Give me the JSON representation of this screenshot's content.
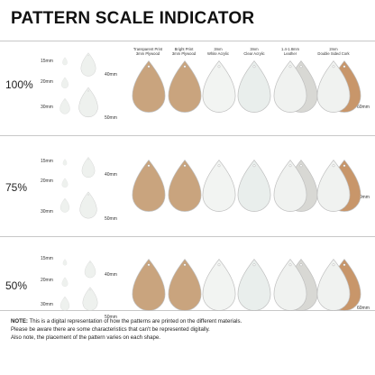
{
  "title": "PATTERN SCALE INDICATOR",
  "columns": [
    {
      "line1": "Transparent Print",
      "line2": "3mm Plywood"
    },
    {
      "line1": "Bright Print",
      "line2": "3mm Plywood"
    },
    {
      "line1": "3mm",
      "line2": "White Acrylic"
    },
    {
      "line1": "3mm",
      "line2": "Clear Acrylic"
    },
    {
      "line1": "1.4-1.8mm",
      "line2": "Leather"
    },
    {
      "line1": "2mm",
      "line2": "Double Sided Cork"
    }
  ],
  "sections": [
    {
      "scale": "100%",
      "sizes": [
        "15mm",
        "20mm",
        "30mm",
        "40mm",
        "50mm"
      ],
      "side_size": "60mm"
    },
    {
      "scale": "75%",
      "sizes": [
        "15mm",
        "20mm",
        "30mm",
        "40mm",
        "50mm"
      ],
      "side_size": "60mm"
    },
    {
      "scale": "50%",
      "sizes": [
        "15mm",
        "20mm",
        "30mm",
        "40mm",
        "50mm"
      ],
      "side_size": "60mm"
    }
  ],
  "note": {
    "label": "NOTE:",
    "line1": "This is a digital representation of how the patterns are printed on the different materials.",
    "line2": "Please be aware there are some characteristics that can't be represented digitally.",
    "line3": "Also note, the placement of the pattern varies on each shape."
  },
  "colors": {
    "plywood": "#c9a47e",
    "white_acrylic": "#f2f4f2",
    "clear_acrylic": "#e9eeec",
    "leather": "#d8d8d4",
    "cork": "#c8966a",
    "pink": "#f2b3b3",
    "sage": "#9fb8ac",
    "yellow": "#f2dc8a"
  }
}
